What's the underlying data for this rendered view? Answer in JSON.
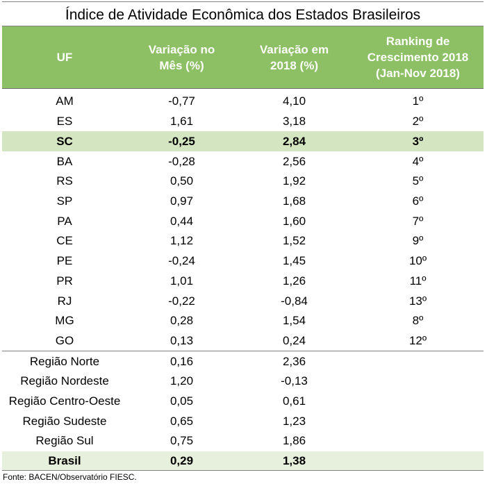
{
  "title": "Índice de Atividade Econômica dos Estados Brasileiros",
  "headers": [
    "UF",
    "Variação no\nMês (%)",
    "Variação em\n2018 (%)",
    "Ranking  de\nCrescimento 2018\n(Jan-Nov 2018)"
  ],
  "states": [
    [
      "AM",
      "-0,77",
      "4,10",
      "1º"
    ],
    [
      "ES",
      "1,61",
      "3,18",
      "2º"
    ],
    [
      "SC",
      "-0,25",
      "2,84",
      "3º"
    ],
    [
      "BA",
      "-0,28",
      "2,56",
      "4º"
    ],
    [
      "RS",
      "0,50",
      "1,92",
      "5º"
    ],
    [
      "SP",
      "0,97",
      "1,68",
      "6º"
    ],
    [
      "PA",
      "0,44",
      "1,60",
      "7º"
    ],
    [
      "CE",
      "1,12",
      "1,52",
      "9º"
    ],
    [
      "PE",
      "-0,24",
      "1,45",
      "10º"
    ],
    [
      "PR",
      "1,01",
      "1,26",
      "11º"
    ],
    [
      "RJ",
      "-0,22",
      "-0,84",
      "13º"
    ],
    [
      "MG",
      "0,28",
      "1,54",
      "8º"
    ],
    [
      "GO",
      "0,13",
      "0,24",
      "12º"
    ]
  ],
  "regions": [
    [
      "Região Norte",
      "0,16",
      "2,36",
      ""
    ],
    [
      "Região Nordeste",
      "1,20",
      "-0,13",
      ""
    ],
    [
      "Região Centro-Oeste",
      "0,05",
      "0,61",
      ""
    ],
    [
      "Região Sudeste",
      "0,65",
      "1,23",
      ""
    ],
    [
      "Região Sul",
      "0,75",
      "1,86",
      ""
    ]
  ],
  "total": [
    "Brasil",
    "0,29",
    "1,38",
    ""
  ],
  "source": "Fonte: BACEN/Observatório FIESC.",
  "colors": {
    "header_bg": "#8dbf64",
    "highlight_bg": "#d4e6c1",
    "total_bg": "#e7f0dc"
  }
}
